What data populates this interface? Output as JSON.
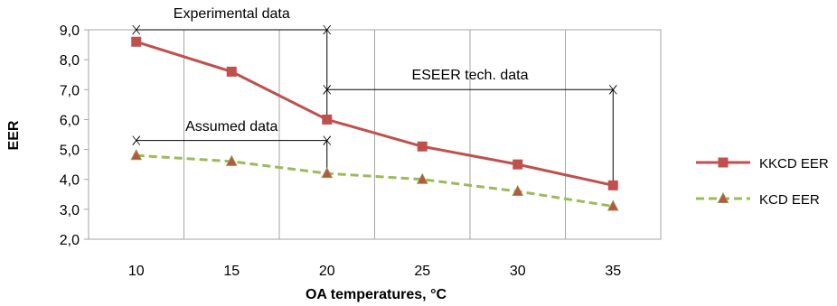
{
  "chart_data": {
    "type": "line",
    "x": [
      10,
      15,
      20,
      25,
      30,
      35
    ],
    "xlabel": "OA temperatures, °C",
    "ylabel": "EER",
    "ylim": [
      2.0,
      9.0
    ],
    "yticks": [
      "2,0",
      "3,0",
      "4,0",
      "5,0",
      "6,0",
      "7,0",
      "8,0",
      "9,0"
    ],
    "xticks": [
      "10",
      "15",
      "20",
      "25",
      "30",
      "35"
    ],
    "grid": "vertical",
    "legend_position": "right",
    "series": [
      {
        "name": "KKCD EER",
        "values": [
          8.6,
          7.6,
          6.0,
          5.1,
          4.5,
          3.8
        ],
        "color": "#c0504d",
        "marker": "square",
        "style": "solid"
      },
      {
        "name": "KCD EER",
        "values": [
          4.8,
          4.6,
          4.2,
          4.0,
          3.6,
          3.1
        ],
        "color": "#9bbb59",
        "marker": "triangle",
        "style": "dashed",
        "marker_fill": "#c0504d"
      }
    ],
    "annotations": [
      {
        "text": "Experimental data",
        "x_start": 10,
        "x_end": 20,
        "y": 9.0
      },
      {
        "text": "ESEER tech. data",
        "x_start": 20,
        "x_end": 35,
        "y": 7.0
      },
      {
        "text": "Assumed data",
        "x_start": 10,
        "x_end": 20,
        "y": 5.3
      }
    ]
  }
}
